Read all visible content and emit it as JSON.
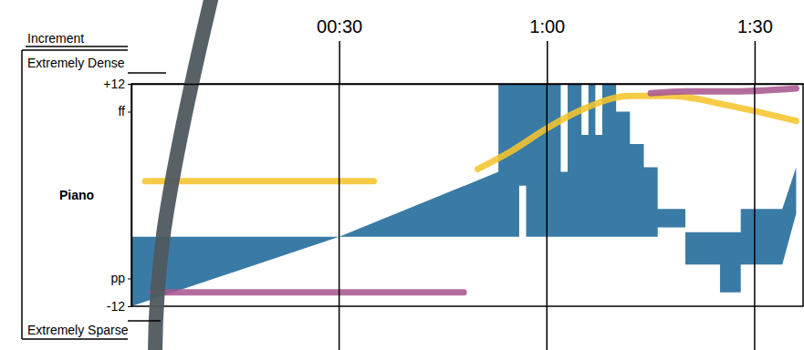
{
  "chart_data": {
    "type": "area",
    "ylabel": "Increment",
    "annotations": [
      "Extremely Dense",
      "Extremely Sparse",
      "Piano"
    ],
    "xlim": [
      0,
      97
    ],
    "xticks": [
      {
        "value": 30,
        "label": "00:30"
      },
      {
        "value": 60,
        "label": "1:00"
      },
      {
        "value": 90,
        "label": "1:30"
      }
    ],
    "ylim": [
      -12,
      12
    ],
    "yticks": [
      {
        "value": 12,
        "label": "+12"
      },
      {
        "value": 9,
        "label": "ff"
      },
      {
        "value": -9,
        "label": "pp"
      },
      -12
    ],
    "grid": "x",
    "series": [
      {
        "type": "area",
        "color": "#3a7ba6",
        "x": [
          0,
          30,
          53,
          53,
          56,
          56,
          57,
          57,
          62,
          62,
          63,
          63,
          65,
          65,
          66,
          66,
          67,
          67,
          68,
          68,
          70,
          70,
          72,
          72,
          74,
          74,
          76,
          76,
          80,
          80,
          85,
          85,
          88,
          88,
          94,
          96
        ],
        "values": [
          -4.5,
          -4.5,
          2.5,
          12,
          12,
          12,
          12,
          12,
          12,
          2.5,
          2.5,
          12,
          12,
          6.5,
          6.5,
          12,
          12,
          6.5,
          6.5,
          12,
          12,
          9,
          9,
          5.5,
          5.5,
          3,
          3,
          -1.5,
          -1.5,
          -4,
          -4,
          -4,
          -4,
          -1.5,
          -1.5,
          3
        ],
        "low": [
          -12,
          -4.5,
          -4.5,
          -4.5,
          -4.5,
          1,
          1,
          -4.5,
          -4.5,
          -4.5,
          -4.5,
          -4.5,
          -4.5,
          -4.5,
          -4.5,
          -4.5,
          -4.5,
          -4.5,
          -4.5,
          -4.5,
          -4.5,
          -4.5,
          -4.5,
          -4.5,
          -4.5,
          -4.5,
          -4.5,
          -3.5,
          -3.5,
          -7.5,
          -7.5,
          -10.5,
          -10.5,
          -7.5,
          -7.5,
          -2
        ]
      },
      {
        "type": "line",
        "color": "#f5c52c",
        "line_style": "brush",
        "x": [
          2,
          35
        ],
        "values": [
          1.5,
          1.5
        ]
      },
      {
        "type": "line",
        "color": "#a8588f",
        "line_style": "brush",
        "x": [
          3,
          48
        ],
        "values": [
          -10.5,
          -10.5
        ]
      },
      {
        "type": "line",
        "color": "#f5c52c",
        "line_style": "brush",
        "x": [
          50,
          55,
          60,
          65,
          72,
          78,
          86,
          96
        ],
        "values": [
          2.8,
          4.8,
          7.2,
          9.2,
          10.7,
          10.7,
          9.7,
          8
        ]
      },
      {
        "type": "line",
        "color": "#a8588f",
        "line_style": "brush",
        "x": [
          75,
          80,
          88,
          96
        ],
        "values": [
          11,
          11.2,
          11.2,
          11.5
        ]
      }
    ]
  }
}
